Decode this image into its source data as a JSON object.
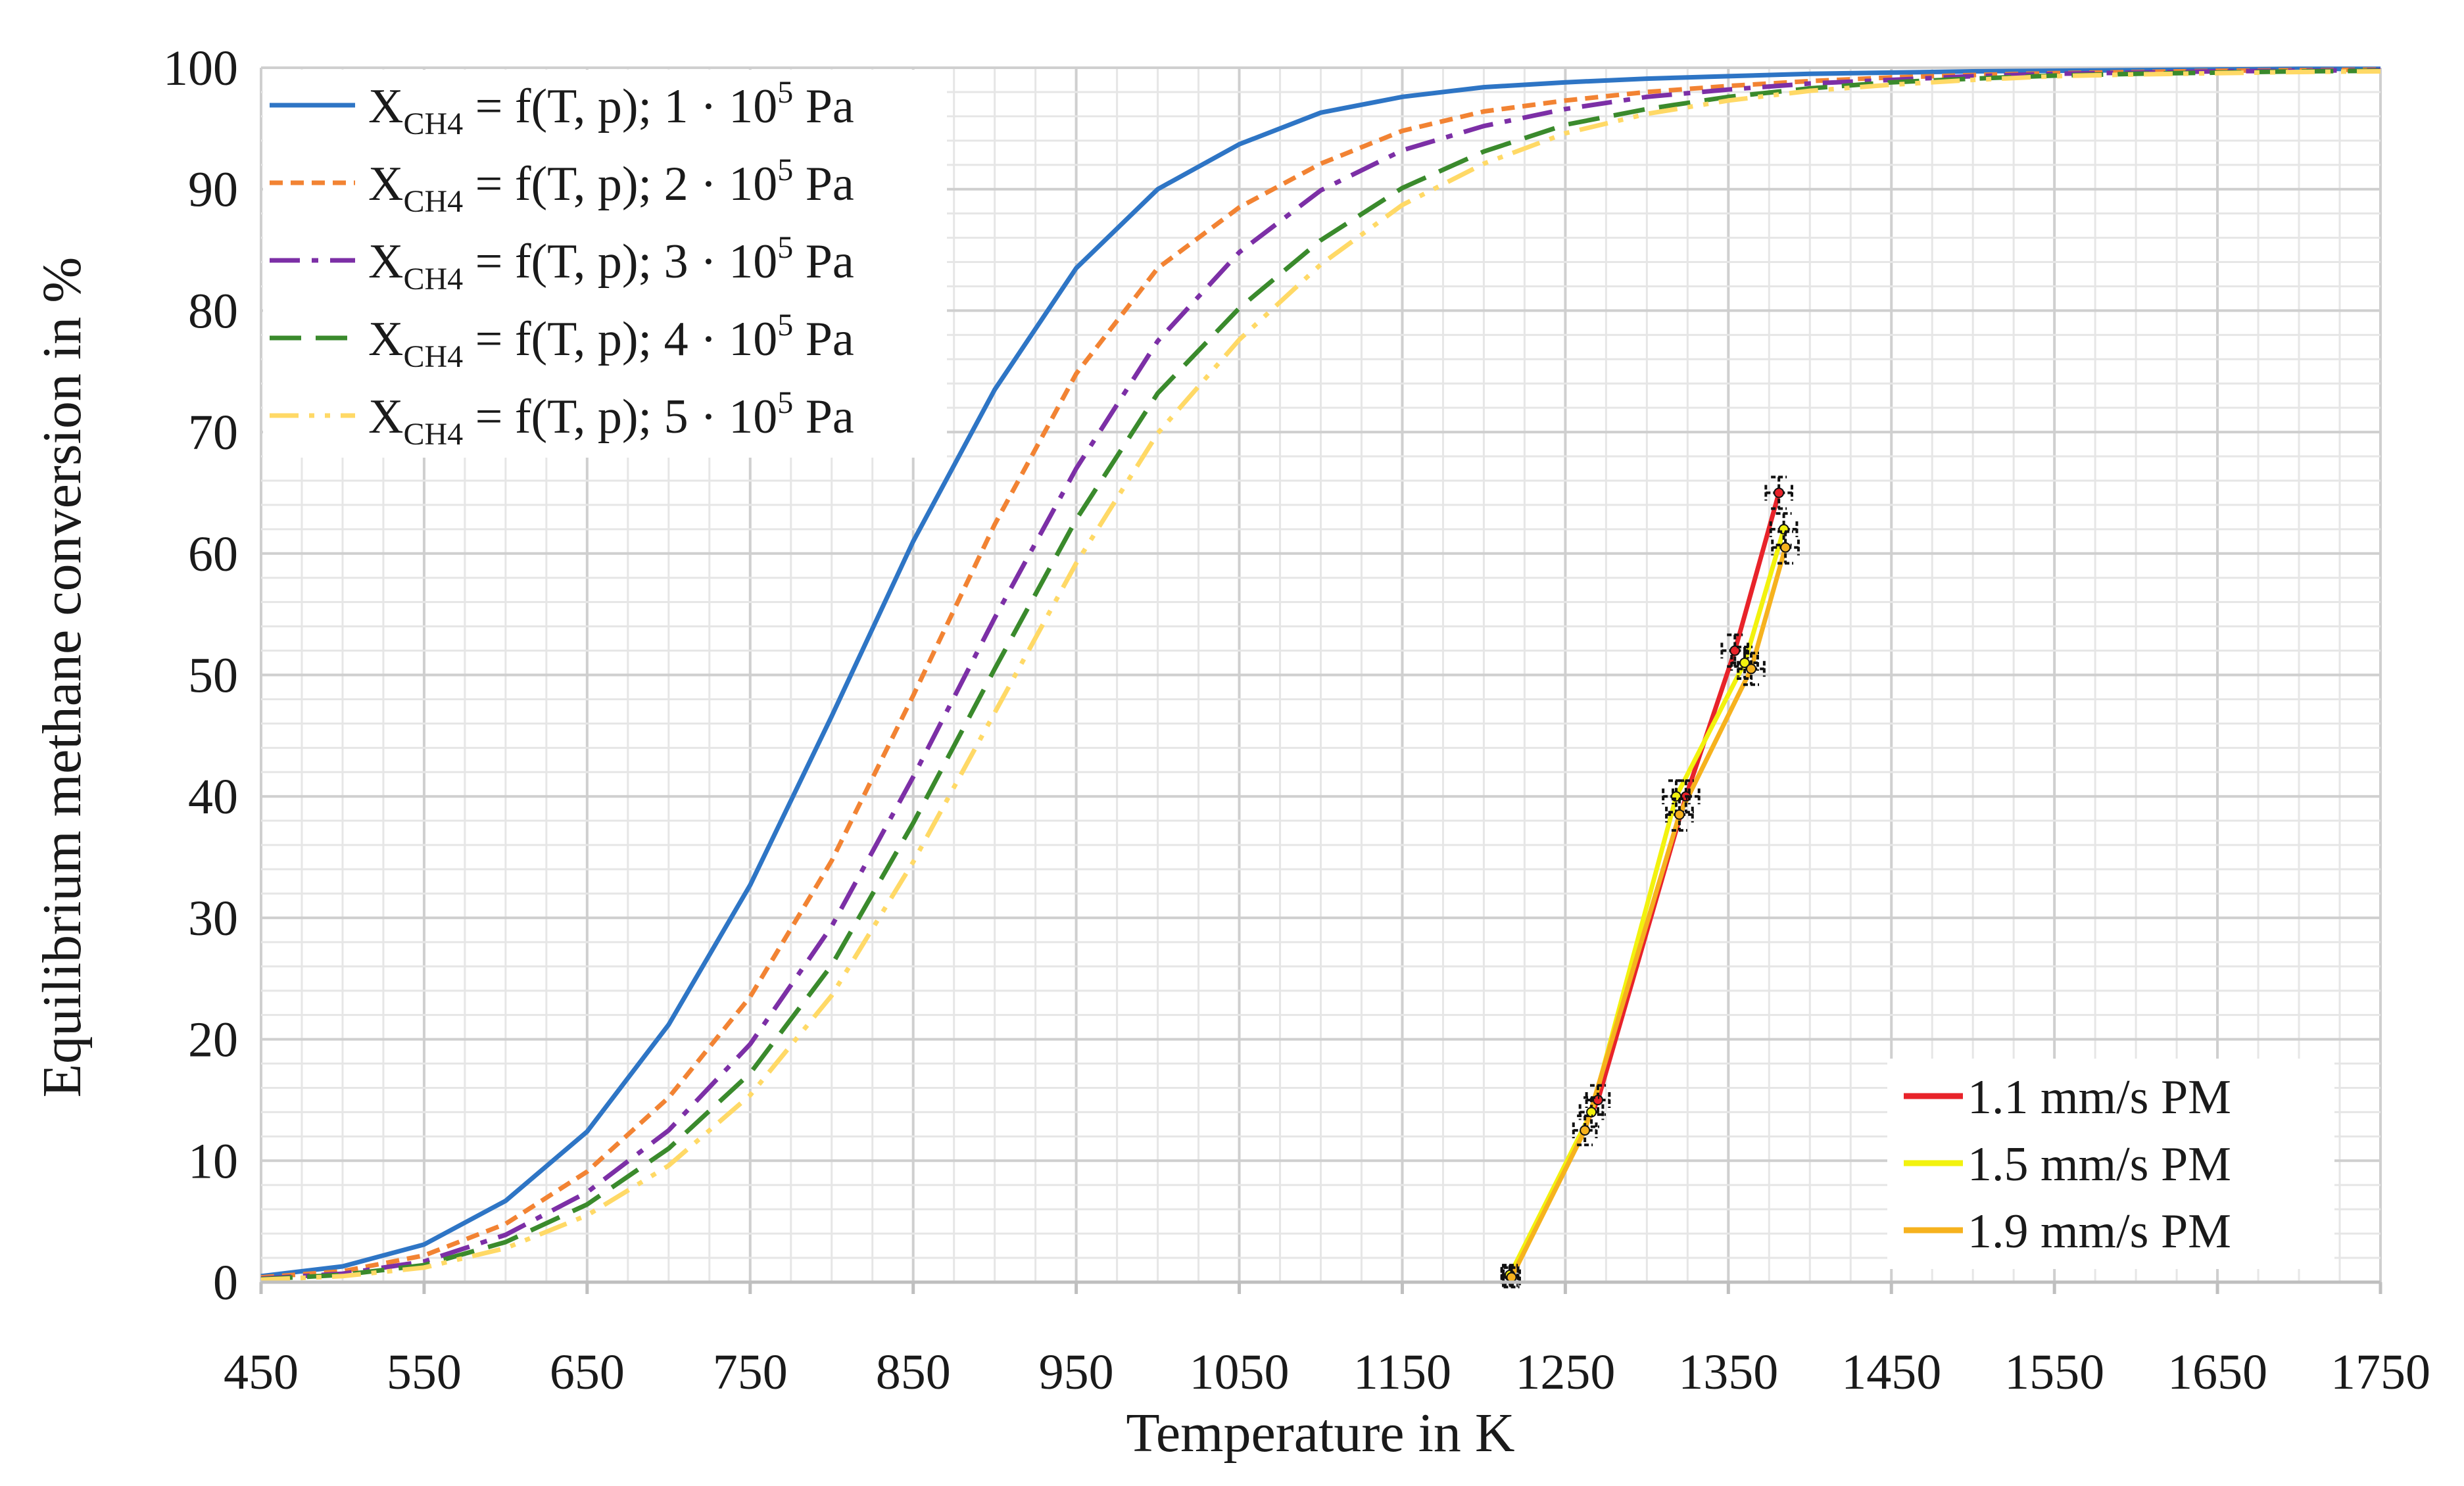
{
  "chart_data": {
    "type": "line",
    "title": "",
    "xlabel": "Temperature in K",
    "ylabel": "Equilibrium methane conversion in %",
    "xlim": [
      450,
      1750
    ],
    "ylim": [
      0,
      100
    ],
    "x_ticks": [
      "450",
      "550",
      "650",
      "750",
      "850",
      "950",
      "1050",
      "1150",
      "1250",
      "1350",
      "1450",
      "1550",
      "1650",
      "1750"
    ],
    "y_ticks": [
      "0",
      "10",
      "20",
      "30",
      "40",
      "50",
      "60",
      "70",
      "80",
      "90",
      "100"
    ],
    "grid": true,
    "legend_equilibrium": {
      "position": "top-left",
      "prefix": "X",
      "subscript": "CH4",
      "formula": " = f(T, p); ",
      "multiplier": " · 10",
      "superscript": "5",
      "unit": " Pa"
    },
    "legend_experiment": {
      "position": "bottom-right"
    },
    "equilibrium_series": [
      {
        "name": "1",
        "color": "#2E75C5",
        "dash": "solid",
        "x": [
          450,
          500,
          550,
          600,
          650,
          700,
          750,
          800,
          850,
          900,
          950,
          1000,
          1050,
          1100,
          1150,
          1200,
          1250,
          1300,
          1350,
          1400,
          1450,
          1500,
          1550,
          1600,
          1650,
          1700,
          1750
        ],
        "y": [
          0.5,
          1.3,
          3.1,
          6.7,
          12.4,
          21.2,
          32.7,
          46.6,
          61,
          73.5,
          83.5,
          90,
          93.7,
          96.3,
          97.6,
          98.4,
          98.8,
          99.1,
          99.3,
          99.5,
          99.6,
          99.7,
          99.75,
          99.8,
          99.85,
          99.9,
          99.9
        ]
      },
      {
        "name": "2",
        "color": "#F28333",
        "dash": "dashed",
        "x": [
          450,
          500,
          550,
          600,
          650,
          700,
          750,
          800,
          850,
          900,
          950,
          1000,
          1050,
          1100,
          1150,
          1200,
          1250,
          1300,
          1350,
          1400,
          1450,
          1500,
          1550,
          1600,
          1650,
          1700,
          1750
        ],
        "y": [
          0.4,
          0.9,
          2.2,
          4.8,
          9.1,
          15.2,
          23.5,
          34.7,
          48.3,
          62.4,
          74.8,
          83.5,
          88.5,
          92.1,
          94.8,
          96.4,
          97.3,
          98,
          98.5,
          98.9,
          99.2,
          99.4,
          99.55,
          99.65,
          99.75,
          99.8,
          99.85
        ]
      },
      {
        "name": "3",
        "color": "#7C2FA6",
        "dash": "dashdot",
        "x": [
          450,
          500,
          550,
          600,
          650,
          700,
          750,
          800,
          850,
          900,
          950,
          1000,
          1050,
          1100,
          1150,
          1200,
          1250,
          1300,
          1350,
          1400,
          1450,
          1500,
          1550,
          1600,
          1650,
          1700,
          1750
        ],
        "y": [
          0.3,
          0.7,
          1.7,
          3.9,
          7.4,
          12.5,
          19.6,
          29.3,
          41.6,
          54.7,
          67,
          77.5,
          84.8,
          89.9,
          93.2,
          95.2,
          96.6,
          97.6,
          98.2,
          98.7,
          99,
          99.3,
          99.5,
          99.6,
          99.7,
          99.75,
          99.8
        ]
      },
      {
        "name": "4",
        "color": "#3A8A2C",
        "dash": "longdash",
        "x": [
          450,
          500,
          550,
          600,
          650,
          700,
          750,
          800,
          850,
          900,
          950,
          1000,
          1050,
          1100,
          1150,
          1200,
          1250,
          1300,
          1350,
          1400,
          1450,
          1500,
          1550,
          1600,
          1650,
          1700,
          1750
        ],
        "y": [
          0.25,
          0.6,
          1.4,
          3.3,
          6.4,
          11,
          17.2,
          26.1,
          37.8,
          50.5,
          62.8,
          73.2,
          80.2,
          85.8,
          90.1,
          93.1,
          95.3,
          96.6,
          97.6,
          98.3,
          98.8,
          99.1,
          99.35,
          99.5,
          99.6,
          99.7,
          99.75
        ]
      },
      {
        "name": "5",
        "color": "#FFD966",
        "dash": "dashdotdot",
        "x": [
          450,
          500,
          550,
          600,
          650,
          700,
          750,
          800,
          850,
          900,
          950,
          1000,
          1050,
          1100,
          1150,
          1200,
          1250,
          1300,
          1350,
          1400,
          1450,
          1500,
          1550,
          1600,
          1650,
          1700,
          1750
        ],
        "y": [
          0.2,
          0.5,
          1.2,
          2.8,
          5.5,
          9.6,
          15.4,
          23.6,
          34.6,
          46.9,
          59.2,
          69.9,
          77.6,
          83.8,
          88.7,
          92.1,
          94.6,
          96.2,
          97.3,
          98.1,
          98.6,
          99,
          99.3,
          99.45,
          99.55,
          99.65,
          99.7
        ]
      }
    ],
    "experiment_series": [
      {
        "name": "1.1 mm/s PM",
        "color": "#E8232A",
        "x": [
          1216,
          1270,
          1324,
          1354,
          1381
        ],
        "y": [
          0.5,
          15,
          40,
          52,
          65
        ],
        "xerr": [
          5,
          7,
          8,
          8,
          8
        ],
        "yerr": [
          0.8,
          1.2,
          1.3,
          1.3,
          1.3
        ]
      },
      {
        "name": "1.5 mm/s PM",
        "color": "#F2F20E",
        "x": [
          1216,
          1266,
          1318,
          1360,
          1384
        ],
        "y": [
          0.6,
          14,
          40,
          51,
          62
        ],
        "xerr": [
          5,
          7,
          8,
          8,
          8
        ],
        "yerr": [
          0.8,
          1.2,
          1.3,
          1.3,
          1.3
        ]
      },
      {
        "name": "1.9 mm/s PM",
        "color": "#F6B21E",
        "x": [
          1217,
          1262,
          1320,
          1364,
          1385
        ],
        "y": [
          0.4,
          12.5,
          38.5,
          50.5,
          60.5
        ],
        "xerr": [
          5,
          7,
          8,
          8,
          8
        ],
        "yerr": [
          0.8,
          1.2,
          1.3,
          1.3,
          1.3
        ]
      }
    ]
  }
}
